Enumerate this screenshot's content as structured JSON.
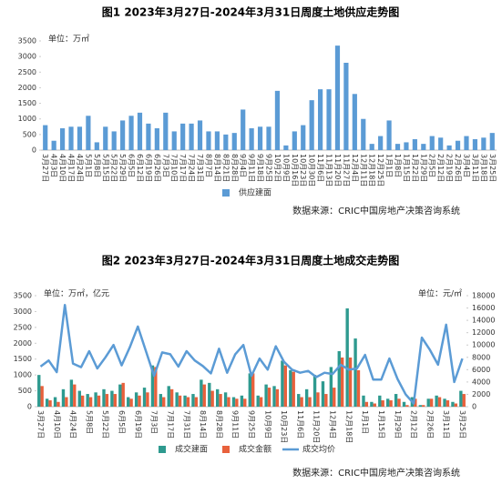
{
  "chart_data": [
    {
      "type": "bar",
      "title": "图1   2023年3月27日-2024年3月31日周度土地供应走势图",
      "y_label": "单位：万㎡",
      "source": "数据来源：CRIC中国房地产决策咨询系统",
      "categories": [
        "3月27日",
        "4月3日",
        "4月10日",
        "4月17日",
        "4月24日",
        "5月1日",
        "5月8日",
        "5月15日",
        "5月22日",
        "5月29日",
        "6月5日",
        "6月12日",
        "6月19日",
        "6月26日",
        "7月3日",
        "7月10日",
        "7月17日",
        "7月24日",
        "7月31日",
        "8月7日",
        "8月14日",
        "8月21日",
        "8月28日",
        "9月4日",
        "9月11日",
        "9月18日",
        "9月25日",
        "10月2日",
        "10月9日",
        "10月16日",
        "10月23日",
        "10月30日",
        "11月6日",
        "11月13日",
        "11月20日",
        "11月27日",
        "12月4日",
        "12月11日",
        "12月18日",
        "12月25日",
        "1月1日",
        "1月8日",
        "1月15日",
        "1月22日",
        "1月29日",
        "2月5日",
        "2月12日",
        "2月19日",
        "2月26日",
        "3月4日",
        "3月11日",
        "3月18日",
        "3月25日"
      ],
      "series": [
        {
          "name": "供应建面",
          "color": "#5b9bd5",
          "values": [
            800,
            300,
            700,
            750,
            750,
            1100,
            250,
            750,
            600,
            950,
            1100,
            1200,
            850,
            700,
            1200,
            600,
            850,
            850,
            950,
            600,
            600,
            500,
            550,
            1300,
            700,
            750,
            750,
            1900,
            150,
            600,
            800,
            1600,
            1950,
            1950,
            3350,
            2800,
            1800,
            1000,
            200,
            450,
            950,
            200,
            250,
            350,
            200,
            450,
            400,
            150,
            300,
            450,
            350,
            400,
            550
          ]
        }
      ],
      "ylim": [
        0,
        3500
      ],
      "yticks": [
        0,
        500,
        1000,
        1500,
        2000,
        2500,
        3000,
        3500
      ],
      "grid": false
    },
    {
      "type": "bar_line",
      "title": "图2   2023年3月27日-2024年3月31日周度土地成交走势图",
      "y_label": "单位：万㎡，亿元",
      "y2_label": "单位：元/㎡",
      "source": "数据来源：CRIC中国房地产决策咨询系统",
      "categories": [
        "3月27日",
        null,
        "4月10日",
        null,
        "4月24日",
        null,
        "5月8日",
        null,
        "5月22日",
        null,
        "6月5日",
        null,
        "6月19日",
        null,
        "7月3日",
        null,
        "7月17日",
        null,
        "7月31日",
        null,
        "8月14日",
        null,
        "8月28日",
        null,
        "9月11日",
        null,
        "9月25日",
        null,
        "10月9日",
        null,
        "10月23日",
        null,
        "11月6日",
        null,
        "11月20日",
        null,
        "12月4日",
        null,
        "12月18日",
        null,
        "1月1日",
        null,
        "1月15日",
        null,
        "1月29日",
        null,
        "2月12日",
        null,
        "2月26日",
        null,
        "3月11日",
        null,
        "3月25日"
      ],
      "series": [
        {
          "name": "成交建面",
          "color": "#2e9a8f",
          "values": [
            1000,
            250,
            300,
            550,
            850,
            500,
            400,
            450,
            550,
            500,
            700,
            300,
            450,
            600,
            1300,
            400,
            650,
            450,
            350,
            400,
            850,
            750,
            550,
            450,
            300,
            350,
            1050,
            350,
            700,
            650,
            1450,
            1150,
            400,
            550,
            1000,
            800,
            1250,
            1750,
            3100,
            2150,
            350,
            150,
            350,
            250,
            400,
            150,
            300,
            50,
            250,
            350,
            250,
            150,
            500
          ]
        },
        {
          "name": "成交金额",
          "color": "#e8613c",
          "values": [
            650,
            200,
            150,
            300,
            700,
            350,
            300,
            350,
            400,
            400,
            750,
            250,
            350,
            450,
            1250,
            300,
            550,
            350,
            300,
            300,
            700,
            500,
            400,
            300,
            250,
            250,
            1050,
            300,
            600,
            550,
            1300,
            1100,
            300,
            300,
            450,
            400,
            600,
            1550,
            1550,
            1150,
            150,
            100,
            200,
            200,
            250,
            50,
            250,
            50,
            250,
            300,
            200,
            100,
            400
          ]
        },
        {
          "name": "成交均价",
          "color": "#5b9bd5",
          "axis": "y2",
          "values": [
            6500,
            7500,
            5600,
            16500,
            7000,
            6400,
            9000,
            6200,
            8000,
            10000,
            6700,
            9600,
            13000,
            9000,
            5000,
            8800,
            8500,
            6500,
            9000,
            7500,
            6600,
            5400,
            9400,
            5500,
            8500,
            10000,
            5000,
            7800,
            6000,
            9800,
            7300,
            6000,
            5500,
            5800,
            4800,
            5500,
            5300,
            6800,
            6000,
            6200,
            8400,
            4400,
            4400,
            7800,
            4500,
            2000,
            500,
            11200,
            9200,
            6800,
            13300,
            4000,
            7800
          ]
        }
      ],
      "ylim": [
        0,
        3500
      ],
      "yticks": [
        0,
        500,
        1000,
        1500,
        2000,
        2500,
        3000,
        3500
      ],
      "y2lim": [
        0,
        18000
      ],
      "y2ticks": [
        0,
        2000,
        4000,
        6000,
        8000,
        10000,
        12000,
        14000,
        16000,
        18000
      ],
      "grid": false
    }
  ]
}
